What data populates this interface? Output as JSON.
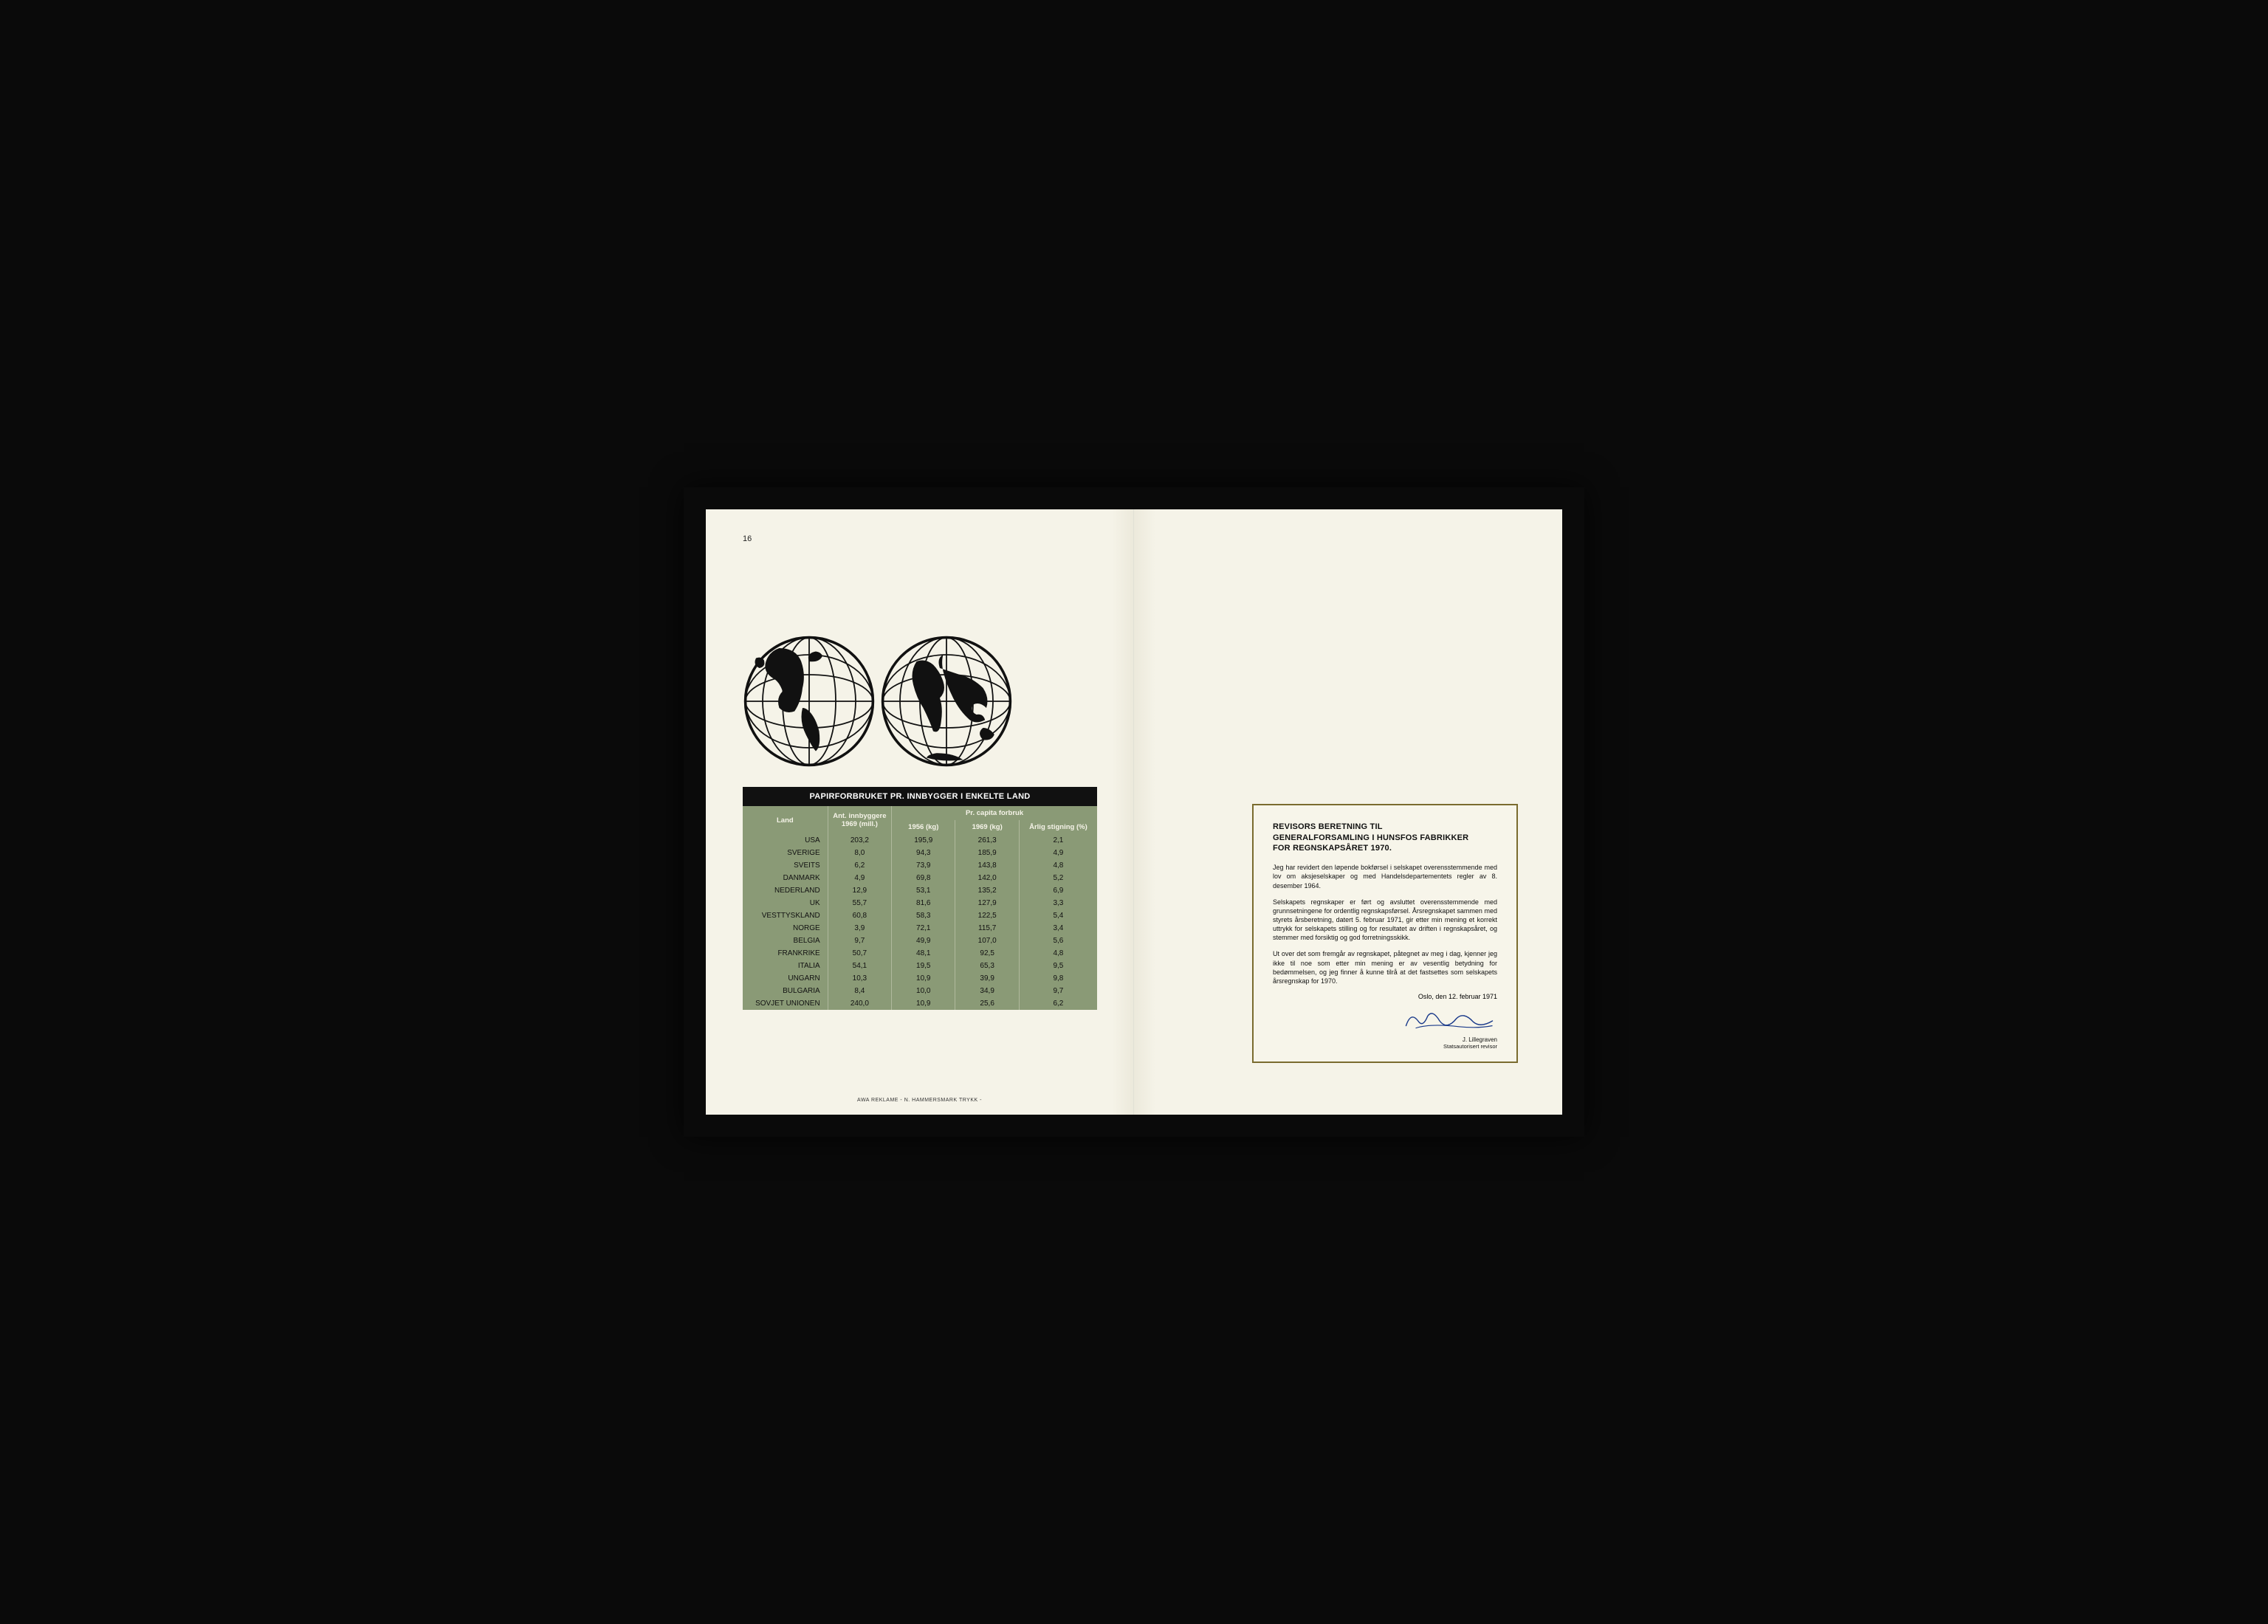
{
  "page_number": "16",
  "footer_credit": "AWA REKLAME - N. HAMMERSMARK TRYKK -",
  "colors": {
    "page_bg": "#f5f3e8",
    "table_title_bg": "#111111",
    "table_title_fg": "#ffffff",
    "table_body_bg": "#8a9a76",
    "table_header_fg": "#f5f3e8",
    "table_cell_fg": "#111111",
    "table_separator": "rgba(245,243,232,0.35)",
    "auditor_border": "#7a6b2e",
    "signature_ink": "#1a3a8a"
  },
  "table": {
    "title": "PAPIRFORBRUKET PR. INNBYGGER I ENKELTE LAND",
    "col_land": "Land",
    "col_pop": "Ant. innbyggere 1969 (mill.)",
    "col_pc_group": "Pr. capita forbruk",
    "col_1956": "1956 (kg)",
    "col_1969": "1969 (kg)",
    "col_rise": "Årlig stigning (%)",
    "column_widths_pct": [
      24,
      18,
      18,
      18,
      22
    ],
    "rows": [
      {
        "land": "USA",
        "pop": "203,2",
        "c1956": "195,9",
        "c1969": "261,3",
        "rise": "2,1"
      },
      {
        "land": "SVERIGE",
        "pop": "8,0",
        "c1956": "94,3",
        "c1969": "185,9",
        "rise": "4,9"
      },
      {
        "land": "SVEITS",
        "pop": "6,2",
        "c1956": "73,9",
        "c1969": "143,8",
        "rise": "4,8"
      },
      {
        "land": "DANMARK",
        "pop": "4,9",
        "c1956": "69,8",
        "c1969": "142,0",
        "rise": "5,2"
      },
      {
        "land": "NEDERLAND",
        "pop": "12,9",
        "c1956": "53,1",
        "c1969": "135,2",
        "rise": "6,9"
      },
      {
        "land": "UK",
        "pop": "55,7",
        "c1956": "81,6",
        "c1969": "127,9",
        "rise": "3,3"
      },
      {
        "land": "VESTTYSKLAND",
        "pop": "60,8",
        "c1956": "58,3",
        "c1969": "122,5",
        "rise": "5,4"
      },
      {
        "land": "NORGE",
        "pop": "3,9",
        "c1956": "72,1",
        "c1969": "115,7",
        "rise": "3,4"
      },
      {
        "land": "BELGIA",
        "pop": "9,7",
        "c1956": "49,9",
        "c1969": "107,0",
        "rise": "5,6"
      },
      {
        "land": "FRANKRIKE",
        "pop": "50,7",
        "c1956": "48,1",
        "c1969": "92,5",
        "rise": "4,8"
      },
      {
        "land": "ITALIA",
        "pop": "54,1",
        "c1956": "19,5",
        "c1969": "65,3",
        "rise": "9,5"
      },
      {
        "land": "UNGARN",
        "pop": "10,3",
        "c1956": "10,9",
        "c1969": "39,9",
        "rise": "9,8"
      },
      {
        "land": "BULGARIA",
        "pop": "8,4",
        "c1956": "10,0",
        "c1969": "34,9",
        "rise": "9,7"
      },
      {
        "land": "SOVJET UNIONEN",
        "pop": "240,0",
        "c1956": "10,9",
        "c1969": "25,6",
        "rise": "6,2"
      }
    ]
  },
  "auditor": {
    "title_l1": "REVISORS BERETNING TIL",
    "title_l2": "GENERALFORSAMLING I HUNSFOS FABRIKKER",
    "title_l3": "FOR REGNSKAPSÅRET 1970.",
    "para1": "Jeg har revidert den løpende bokførsel i selskapet overensstemmende med lov om aksjeselskaper og med Handelsdepartementets regler av 8. desember 1964.",
    "para2": "Selskapets regnskaper er ført og avsluttet overensstemmende med grunnsetningene for ordentlig regnskapsførsel. Årsregnskapet sammen med styrets årsberetning, datert 5. februar 1971, gir etter min mening et korrekt uttrykk for selskapets stilling og for resultatet av driften i regnskapsåret, og stemmer med forsiktig og god forretningsskikk.",
    "para3": "Ut over det som fremgår av regnskapet, påtegnet av meg i dag, kjenner jeg ikke til noe som etter min mening er av vesentlig betydning for bedømmelsen, og jeg finner å kunne tilrå at det fastsettes som selskapets årsregnskap for 1970.",
    "date": "Oslo, den 12. februar 1971",
    "sig_name": "J. Lillegraven",
    "sig_role": "Statsautorisert revisor"
  }
}
